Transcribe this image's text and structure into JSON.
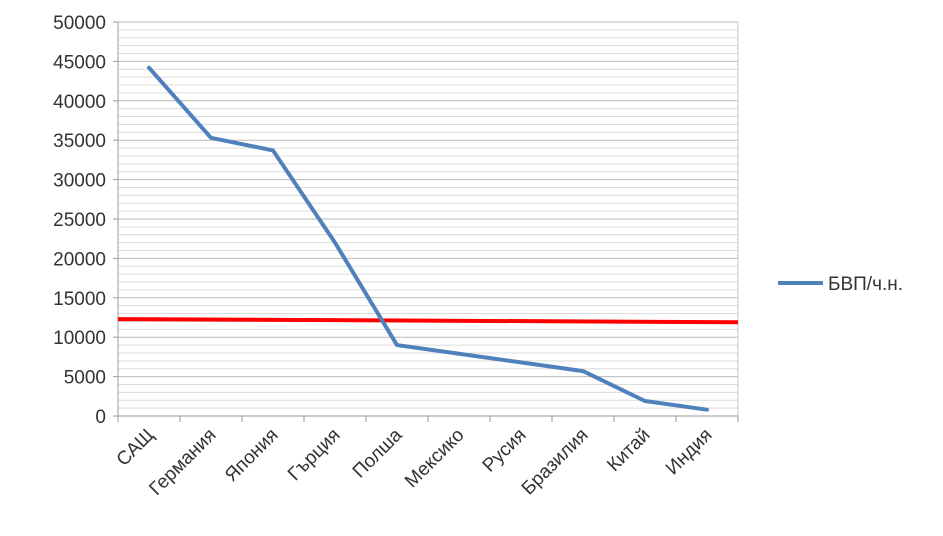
{
  "chart_data": {
    "type": "line",
    "categories": [
      "САЩ",
      "Германия",
      "Япония",
      "Гърция",
      "Полша",
      "Мексико",
      "Русия",
      "Бразилия",
      "Китай",
      "Индия"
    ],
    "series": [
      {
        "name": "БВП/ч.н.",
        "values": [
          44200,
          35300,
          33700,
          22000,
          9000,
          7900,
          6800,
          5700,
          1900,
          800
        ],
        "color": "#4f81bd"
      }
    ],
    "reference_line": {
      "start_value": 12300,
      "end_value": 11900,
      "color": "#ff0000"
    },
    "y_ticks": [
      "50000",
      "45000",
      "40000",
      "35000",
      "30000",
      "25000",
      "20000",
      "15000",
      "10000",
      "5000",
      "0"
    ],
    "ylim": [
      0,
      50000
    ],
    "grid": true,
    "legend_position": "right"
  }
}
